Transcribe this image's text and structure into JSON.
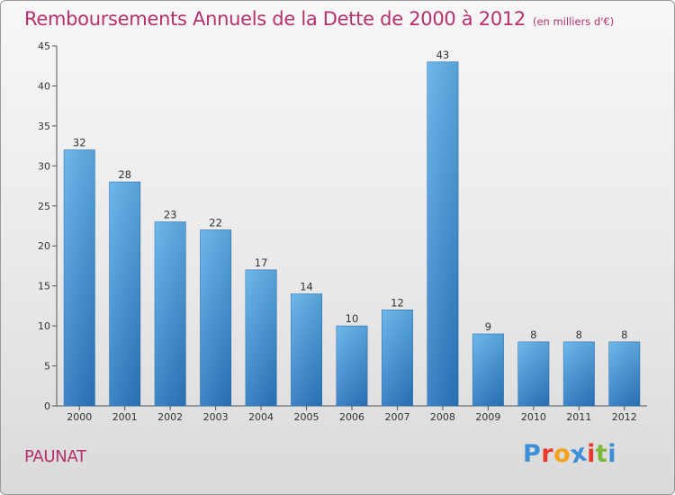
{
  "header": {
    "title": "Remboursements Annuels de la Dette de 2000 à 2012",
    "unit": "(en milliers d'€)"
  },
  "footer": {
    "place": "PAUNAT",
    "logo_letters": [
      "P",
      "r",
      "o",
      "x",
      "i",
      "t",
      "i"
    ],
    "logo_colors": [
      "#3a8fd6",
      "#e8392f",
      "#f4a21d",
      "#3a8fd6",
      "#e8392f",
      "#7ab83c",
      "#3a8fd6"
    ]
  },
  "chart_data": {
    "type": "bar",
    "categories": [
      "2000",
      "2001",
      "2002",
      "2003",
      "2004",
      "2005",
      "2006",
      "2007",
      "2008",
      "2009",
      "2010",
      "2011",
      "2012"
    ],
    "values": [
      32,
      28,
      23,
      22,
      17,
      14,
      10,
      12,
      43,
      9,
      8,
      8,
      8
    ],
    "title": "Remboursements Annuels de la Dette de 2000 à 2012",
    "subtitle": "(en milliers d'€)",
    "xlabel": "",
    "ylabel": "",
    "ylim": [
      0,
      45
    ],
    "yticks": [
      0,
      5,
      10,
      15,
      20,
      25,
      30,
      35,
      40,
      45
    ],
    "grid": false,
    "bar_color": "#4a9be0"
  }
}
